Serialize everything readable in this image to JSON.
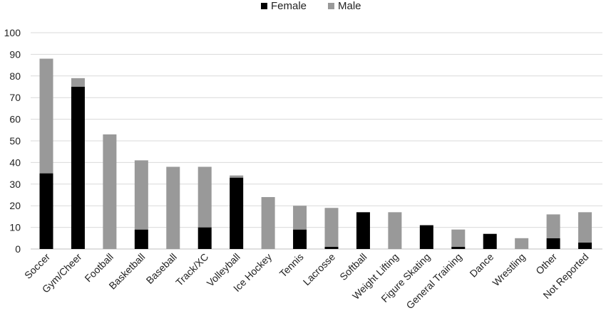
{
  "chart_data": {
    "type": "bar",
    "stacked": true,
    "title": "",
    "xlabel": "",
    "ylabel": "",
    "ylim": [
      0,
      100
    ],
    "yticks": [
      0,
      10,
      20,
      30,
      40,
      50,
      60,
      70,
      80,
      90,
      100
    ],
    "grid": true,
    "legend_position": "top-center",
    "categories": [
      "Soccer",
      "Gym/Cheer",
      "Football",
      "Basketball",
      "Baseball",
      "Track/XC",
      "Volleyball",
      "Ice Hockey",
      "Tennis",
      "Lacrosse",
      "Softball",
      "Weight Lifting",
      "Figure Skating",
      "General Training",
      "Dance",
      "Wrestling",
      "Other",
      "Not Reported"
    ],
    "series": [
      {
        "name": "Female",
        "color": "#000000",
        "values": [
          35,
          75,
          0,
          9,
          0,
          10,
          33,
          0,
          9,
          1,
          17,
          0,
          11,
          1,
          7,
          0,
          5,
          3
        ]
      },
      {
        "name": "Male",
        "color": "#999999",
        "values": [
          53,
          4,
          53,
          32,
          38,
          28,
          1,
          24,
          11,
          18,
          0,
          17,
          0,
          8,
          0,
          5,
          11,
          14
        ]
      }
    ]
  }
}
